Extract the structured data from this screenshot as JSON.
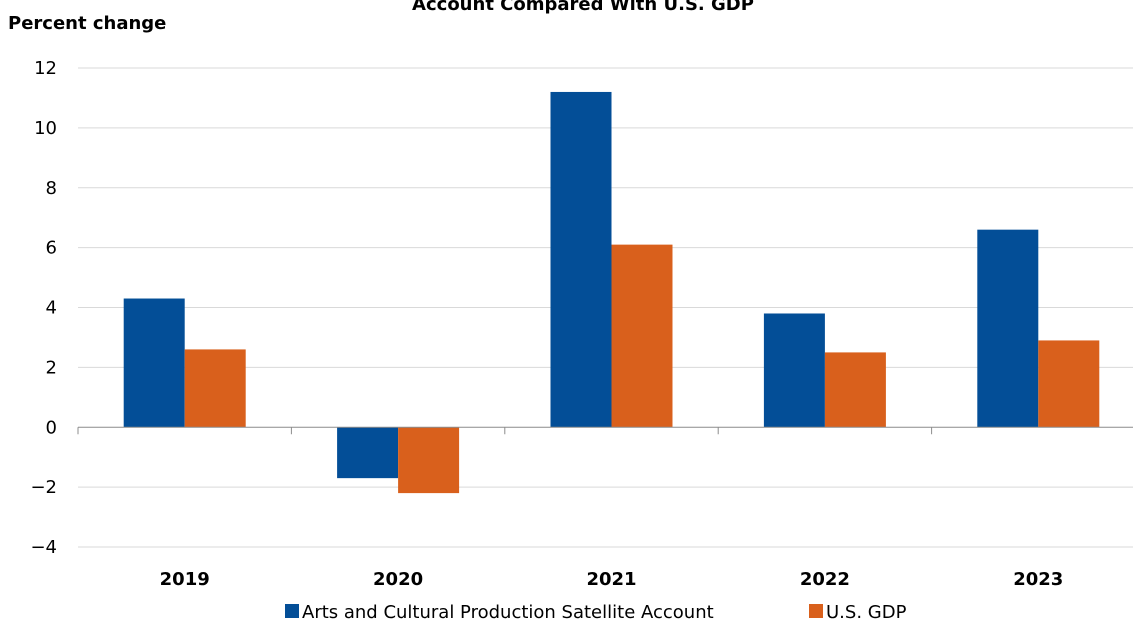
{
  "chart_data": {
    "type": "bar",
    "title": "Account Compared With U.S. GDP",
    "ylabel": "Percent change",
    "xlabel": "",
    "categories": [
      "2019",
      "2020",
      "2021",
      "2022",
      "2023"
    ],
    "series": [
      {
        "name": "Arts and Cultural Production Satellite Account",
        "color": "#034e97",
        "values": [
          4.3,
          -1.7,
          11.2,
          3.8,
          6.6
        ]
      },
      {
        "name": "U.S. GDP",
        "color": "#d9601c",
        "values": [
          2.6,
          -2.2,
          6.1,
          2.5,
          2.9
        ]
      }
    ],
    "ylim": [
      -4,
      12
    ],
    "yticks": [
      12,
      10,
      8,
      6,
      4,
      2,
      0,
      -2,
      -4
    ],
    "ytick_labels": [
      "12",
      "10",
      "8",
      "6",
      "4",
      "2",
      "0",
      "−2",
      "−4"
    ],
    "grid": true,
    "legend_position": "bottom"
  }
}
